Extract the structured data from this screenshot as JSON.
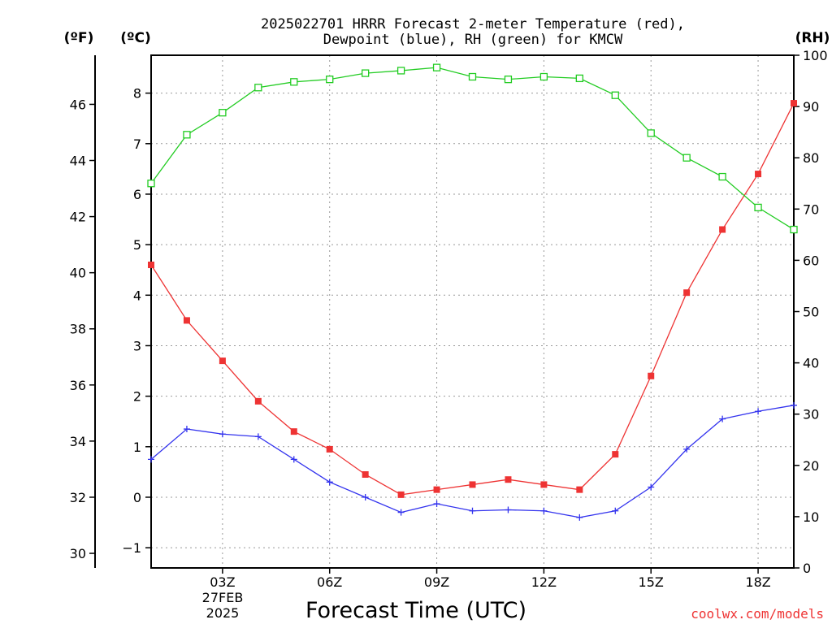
{
  "chart_data": {
    "type": "line",
    "title_line1": "2025022701 HRRR Forecast 2-meter Temperature (red),",
    "title_line2": "Dewpoint (blue), RH (green) for KMCW",
    "xlabel": "Forecast Time (UTC)",
    "left_outer_unit": "(ºF)",
    "left_inner_unit": "(ºC)",
    "right_unit": "(RH)",
    "x_ticks": [
      {
        "hour": 3,
        "label": "03Z"
      },
      {
        "hour": 6,
        "label": "06Z"
      },
      {
        "hour": 9,
        "label": "09Z"
      },
      {
        "hour": 12,
        "label": "12Z"
      },
      {
        "hour": 15,
        "label": "15Z"
      },
      {
        "hour": 18,
        "label": "18Z"
      }
    ],
    "date_line1": "27FEB",
    "date_line2": "2025",
    "credit": "coolwx.com/models",
    "xlim": [
      1,
      19
    ],
    "ylim_c": [
      -1.4,
      8.75
    ],
    "ylim_rh": [
      0,
      100
    ],
    "yticks_c": [
      -1,
      0,
      1,
      2,
      3,
      4,
      5,
      6,
      7,
      8
    ],
    "yticks_f": [
      30,
      32,
      34,
      36,
      38,
      40,
      42,
      44,
      46
    ],
    "yticks_rh": [
      0,
      10,
      20,
      30,
      40,
      50,
      60,
      70,
      80,
      90,
      100
    ],
    "grid": true,
    "hours": [
      1,
      2,
      3,
      4,
      5,
      6,
      7,
      8,
      9,
      10,
      11,
      12,
      13,
      14,
      15,
      16,
      17,
      18,
      19
    ],
    "series": [
      {
        "name": "Temperature",
        "axis": "c",
        "color": "#ee3333",
        "marker": "square-filled",
        "values": [
          4.6,
          3.5,
          2.7,
          1.9,
          1.3,
          0.95,
          0.45,
          0.05,
          0.15,
          0.25,
          0.35,
          0.25,
          0.15,
          0.85,
          2.4,
          4.05,
          5.3,
          6.4,
          7.8
        ]
      },
      {
        "name": "Dewpoint",
        "axis": "c",
        "color": "#3333ee",
        "marker": "plus",
        "values": [
          0.75,
          1.35,
          1.25,
          1.2,
          0.75,
          0.3,
          0.0,
          -0.3,
          -0.13,
          -0.27,
          -0.25,
          -0.27,
          -0.4,
          -0.27,
          0.2,
          0.95,
          1.55,
          1.7,
          1.82
        ]
      },
      {
        "name": "RH",
        "axis": "rh",
        "color": "#22cc22",
        "marker": "square-open",
        "values": [
          75,
          84.5,
          88.8,
          93.7,
          94.8,
          95.3,
          96.5,
          97.0,
          97.6,
          95.8,
          95.3,
          95.8,
          95.5,
          92.2,
          84.8,
          80.0,
          76.3,
          70.3,
          66.0
        ]
      }
    ]
  }
}
